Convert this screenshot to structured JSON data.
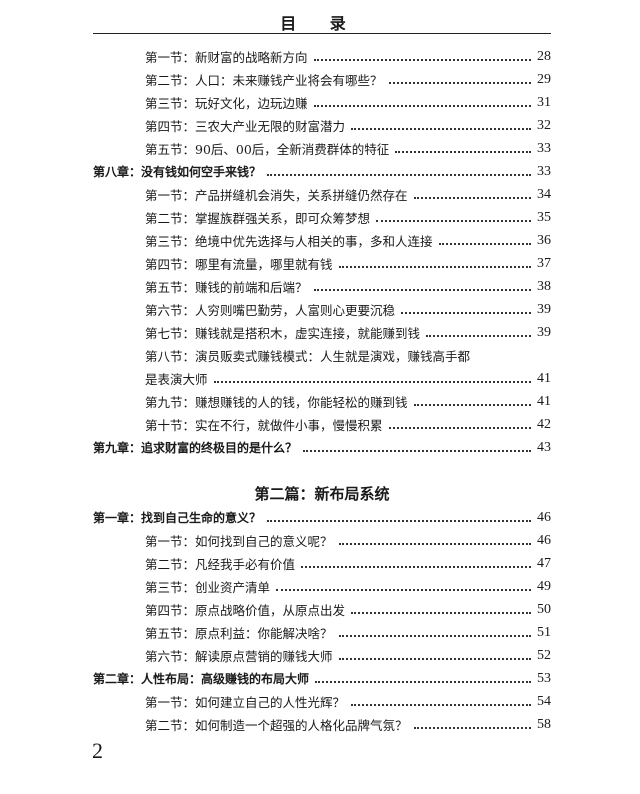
{
  "title": "目 录",
  "entries_a": [
    {
      "type": "section",
      "label": "第一节：新财富的战略新方向",
      "page": "28"
    },
    {
      "type": "section",
      "label": "第二节：人口：未来赚钱产业将会有哪些？",
      "page": "29"
    },
    {
      "type": "section",
      "label": "第三节：玩好文化，边玩边赚",
      "page": "31"
    },
    {
      "type": "section",
      "label": "第四节：三农大产业无限的财富潜力",
      "page": "32"
    },
    {
      "type": "section",
      "label": "第五节：90后、00后，全新消费群体的特征",
      "page": "33"
    },
    {
      "type": "chapter",
      "label": "第八章：没有钱如何空手来钱？",
      "page": "33"
    },
    {
      "type": "section",
      "label": "第一节：产品拼缝机会消失，关系拼缝仍然存在",
      "page": "34"
    },
    {
      "type": "section",
      "label": "第二节：掌握族群强关系，即可众筹梦想",
      "page": "35"
    },
    {
      "type": "section",
      "label": "第三节：绝境中优先选择与人相关的事，多和人连接",
      "page": "36"
    },
    {
      "type": "section",
      "label": "第四节：哪里有流量，哪里就有钱",
      "page": "37"
    },
    {
      "type": "section",
      "label": "第五节：赚钱的前端和后端？",
      "page": "38"
    },
    {
      "type": "section",
      "label": "第六节：人穷则嘴巴勤劳，人富则心更要沉稳",
      "page": "39"
    },
    {
      "type": "section",
      "label": "第七节：赚钱就是搭积木，虚实连接，就能赚到钱",
      "page": "39"
    },
    {
      "type": "wrap",
      "label": "第八节：演员贩卖式赚钱模式：人生就是演戏，赚钱高手都",
      "page": ""
    },
    {
      "type": "section",
      "label": "是表演大师",
      "page": "41"
    },
    {
      "type": "section",
      "label": "第九节：赚想赚钱的人的钱，你能轻松的赚到钱",
      "page": "41"
    },
    {
      "type": "section",
      "label": "第十节：实在不行，就做件小事，慢慢积累",
      "page": "42"
    },
    {
      "type": "chapter",
      "label": "第九章：追求财富的终极目的是什么？",
      "page": "43"
    }
  ],
  "part_heading": "第二篇：新布局系统",
  "entries_b": [
    {
      "type": "chapter",
      "label": "第一章：找到自己生命的意义？",
      "page": "46"
    },
    {
      "type": "section",
      "label": "第一节：如何找到自己的意义呢？",
      "page": "46"
    },
    {
      "type": "section",
      "label": "第二节：凡经我手必有价值",
      "page": "47"
    },
    {
      "type": "section",
      "label": "第三节：创业资产清单",
      "page": "49"
    },
    {
      "type": "section",
      "label": "第四节：原点战略价值，从原点出发",
      "page": "50"
    },
    {
      "type": "section",
      "label": "第五节：原点利益：你能解决啥？",
      "page": "51"
    },
    {
      "type": "section",
      "label": "第六节：解读原点营销的赚钱大师",
      "page": "52"
    },
    {
      "type": "chapter",
      "label": "第二章：人性布局：高级赚钱的布局大师",
      "page": "53"
    },
    {
      "type": "section",
      "label": "第一节：如何建立自己的人性光辉？",
      "page": "54"
    },
    {
      "type": "section",
      "label": "第二节：如何制造一个超强的人格化品牌气氛？",
      "page": "58"
    }
  ],
  "page_number": "2"
}
